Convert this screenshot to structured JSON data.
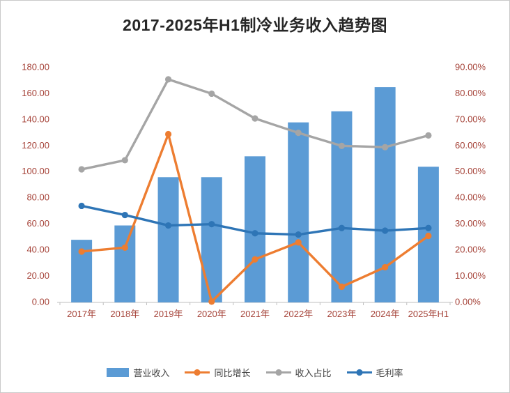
{
  "title": "2017-2025年H1制冷业务收入趋势图",
  "chart_data": {
    "type": "bar+line combo",
    "title": "2017-2025年H1制冷业务收入趋势图",
    "categories": [
      "2017年",
      "2018年",
      "2019年",
      "2020年",
      "2021年",
      "2022年",
      "2023年",
      "2024年",
      "2025年H1"
    ],
    "series": [
      {
        "name": "营业收入",
        "type": "bar",
        "axis": "left",
        "color": "#5B9BD5",
        "values": [
          48,
          59,
          96,
          96,
          112,
          138,
          146.5,
          165,
          104
        ]
      },
      {
        "name": "同比增长",
        "type": "line",
        "axis": "right",
        "color": "#ED7D31",
        "values": [
          19.5,
          21,
          64.5,
          0.3,
          16.5,
          23,
          6,
          13.5,
          25.5
        ]
      },
      {
        "name": "收入占比",
        "type": "line",
        "axis": "right",
        "color": "#A5A5A5",
        "values": [
          51,
          54.5,
          85.5,
          80,
          70.5,
          65,
          60,
          59.5,
          64
        ]
      },
      {
        "name": "毛利率",
        "type": "line",
        "axis": "right",
        "color": "#2E75B6",
        "values": [
          37,
          33.5,
          29.5,
          30,
          26.5,
          26,
          28.5,
          27.5,
          28.5
        ]
      }
    ],
    "left_axis": {
      "min": 0,
      "max": 180,
      "step": 20,
      "tick_labels": [
        "0.00",
        "20.00",
        "40.00",
        "60.00",
        "80.00",
        "100.00",
        "120.00",
        "140.00",
        "160.00",
        "180.00"
      ]
    },
    "right_axis": {
      "min": 0,
      "max": 90,
      "step": 10,
      "tick_labels": [
        "0.00%",
        "10.00%",
        "20.00%",
        "30.00%",
        "40.00%",
        "50.00%",
        "60.00%",
        "70.00%",
        "80.00%",
        "90.00%"
      ]
    },
    "axis_label_color": "#A6443A",
    "grid": "off",
    "legend_position": "bottom"
  }
}
